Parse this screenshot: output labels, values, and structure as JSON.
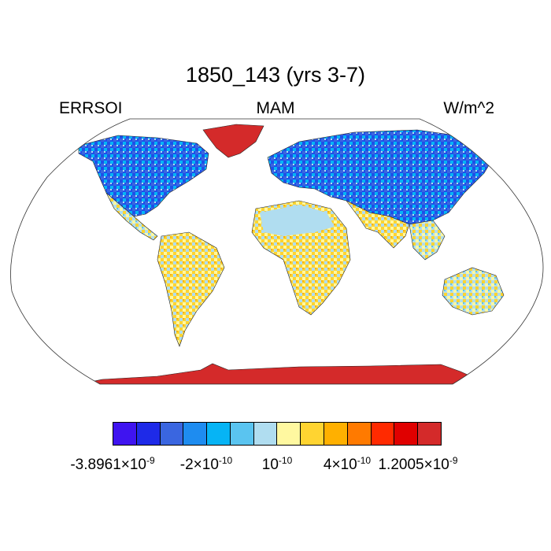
{
  "title": "1850_143 (yrs 3-7)",
  "left_label": "ERRSOI",
  "center_label": "MAM",
  "right_label": "W/m^2",
  "colorbar": {
    "colors": [
      "#3f14f0",
      "#1e2ae8",
      "#3a66e0",
      "#1e8cf0",
      "#06b4f5",
      "#5ac4f0",
      "#b0ddf0",
      "#fff8a0",
      "#ffd431",
      "#ffb000",
      "#ff7a00",
      "#ff2a00",
      "#e00000",
      "#d42a2a"
    ],
    "labels": [
      {
        "base": "-3.8961",
        "mult": "×10",
        "exp": "-9"
      },
      {
        "base": "-2",
        "mult": "×10",
        "exp": "-10"
      },
      {
        "base": "10",
        "mult": "",
        "exp": "-10"
      },
      {
        "base": "4",
        "mult": "×10",
        "exp": "-10"
      },
      {
        "base": "1.2005",
        "mult": "×10",
        "exp": "-9"
      }
    ]
  }
}
